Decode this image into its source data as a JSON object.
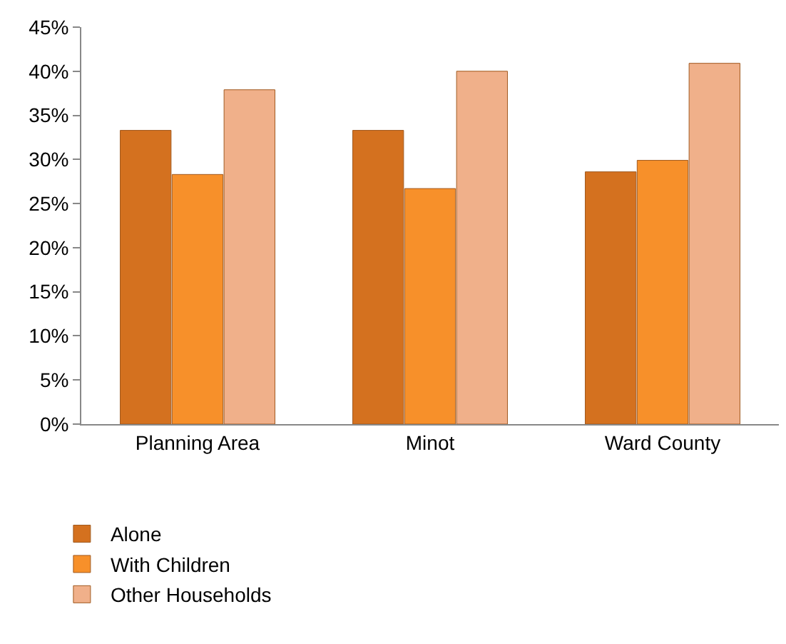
{
  "chart_data": {
    "type": "bar",
    "categories": [
      "Planning Area",
      "Minot",
      "Ward County"
    ],
    "series": [
      {
        "name": "Alone",
        "color": "#d4711f",
        "values": [
          33.3,
          33.3,
          28.6
        ]
      },
      {
        "name": "With Children",
        "color": "#f7902a",
        "values": [
          28.3,
          26.7,
          29.9
        ]
      },
      {
        "name": "Other Households",
        "color": "#f0b08a",
        "values": [
          37.9,
          40.0,
          40.9
        ]
      }
    ],
    "ylim": [
      0,
      45
    ],
    "yticks": [
      {
        "value": 0,
        "label": "0%"
      },
      {
        "value": 5,
        "label": "5%"
      },
      {
        "value": 10,
        "label": "10%"
      },
      {
        "value": 15,
        "label": "15%"
      },
      {
        "value": 20,
        "label": "20%"
      },
      {
        "value": 25,
        "label": "25%"
      },
      {
        "value": 30,
        "label": "30%"
      },
      {
        "value": 35,
        "label": "35%"
      },
      {
        "value": 40,
        "label": "40%"
      },
      {
        "value": 45,
        "label": "45%"
      }
    ],
    "grid": false,
    "legend": "bottom left"
  }
}
